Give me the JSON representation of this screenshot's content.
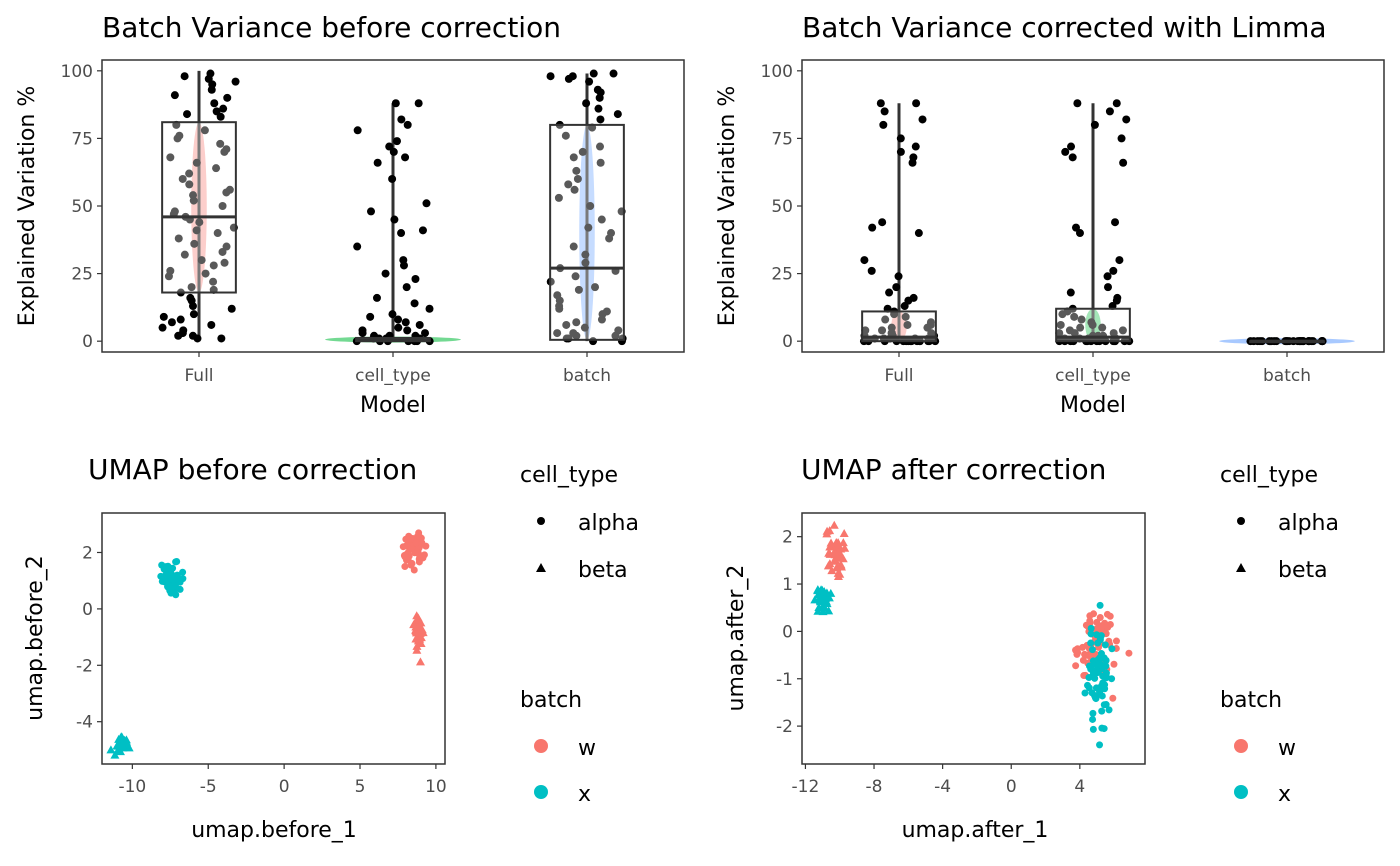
{
  "colors": {
    "w": "#F8766D",
    "x": "#00BFC4",
    "frame": "#333333",
    "point": "#000000",
    "box": "#333333"
  },
  "chart_data": [
    {
      "id": "bv_before",
      "type": "boxplot",
      "title": "Batch Variance before correction",
      "xlabel": "Model",
      "ylabel": "Explained Variation %",
      "categories": [
        "Full",
        "cell_type",
        "batch"
      ],
      "ylim": [
        -4,
        104
      ],
      "yticks": [
        0,
        25,
        50,
        75,
        100
      ],
      "boxes": [
        {
          "q1": 18,
          "median": 46,
          "q3": 81,
          "lo": 1,
          "hi": 100
        },
        {
          "q1": 0,
          "median": 0.3,
          "q3": 1.2,
          "lo": 0,
          "hi": 88
        },
        {
          "q1": 0.5,
          "median": 27,
          "q3": 80,
          "lo": 0,
          "hi": 99
        }
      ],
      "violin_colors": [
        "#F8766D",
        "#00BA38",
        "#619CFF"
      ],
      "points": {
        "Full": [
          99,
          98,
          97,
          96,
          95,
          93,
          91,
          90,
          88,
          86,
          85,
          84,
          83,
          80,
          78,
          76,
          75,
          73,
          71,
          70,
          68,
          66,
          64,
          62,
          60,
          58,
          56,
          55,
          54,
          52,
          50,
          48,
          47,
          46,
          45,
          44,
          42,
          41,
          40,
          38,
          36,
          35,
          33,
          32,
          30,
          29,
          28,
          26,
          25,
          24,
          22,
          20,
          19,
          18,
          16,
          15,
          13,
          12,
          10,
          9,
          8,
          7,
          6,
          5,
          4,
          3,
          2,
          2,
          1,
          1
        ],
        "cell_type": [
          88,
          88,
          82,
          80,
          78,
          74,
          72,
          70,
          68,
          66,
          60,
          51,
          48,
          45,
          41,
          40,
          35,
          30,
          28,
          25,
          23,
          20,
          16,
          14,
          12,
          10,
          9,
          8,
          7,
          6,
          5,
          4,
          4,
          3,
          3,
          2,
          2,
          2,
          1,
          1,
          1,
          1,
          1,
          0,
          0,
          0,
          0,
          0,
          0,
          0
        ],
        "batch": [
          99,
          99,
          98,
          98,
          97,
          96,
          93,
          92,
          90,
          88,
          86,
          84,
          82,
          80,
          79,
          76,
          72,
          70,
          68,
          66,
          63,
          60,
          58,
          56,
          53,
          50,
          48,
          45,
          42,
          40,
          38,
          35,
          32,
          29,
          27,
          26,
          24,
          22,
          20,
          19,
          17,
          15,
          13,
          12,
          11,
          10,
          8,
          7,
          6,
          5,
          4,
          3,
          3,
          2,
          2,
          1,
          1,
          1,
          0,
          0
        ]
      }
    },
    {
      "id": "bv_after",
      "type": "boxplot",
      "title": "Batch Variance corrected with Limma",
      "xlabel": "Model",
      "ylabel": "Explained Variation %",
      "categories": [
        "Full",
        "cell_type",
        "batch"
      ],
      "ylim": [
        -4,
        104
      ],
      "yticks": [
        0,
        25,
        50,
        75,
        100
      ],
      "boxes": [
        {
          "q1": 0,
          "median": 1.5,
          "q3": 11,
          "lo": 0,
          "hi": 88
        },
        {
          "q1": 0,
          "median": 1.5,
          "q3": 12,
          "lo": 0,
          "hi": 88
        },
        {
          "q1": 0,
          "median": 0,
          "q3": 0,
          "lo": 0,
          "hi": 0
        }
      ],
      "violin_colors": [
        "#F8766D",
        "#00BA38",
        "#619CFF"
      ],
      "points": {
        "Full": [
          88,
          88,
          85,
          82,
          80,
          75,
          72,
          70,
          68,
          66,
          44,
          42,
          40,
          30,
          26,
          24,
          20,
          18,
          16,
          15,
          13,
          12,
          11,
          10,
          9,
          8,
          7,
          6,
          6,
          5,
          5,
          4,
          4,
          3,
          3,
          3,
          2,
          2,
          2,
          1,
          1,
          1,
          1,
          1,
          1,
          0,
          0,
          0,
          0,
          0,
          0,
          0,
          0,
          0,
          0,
          0,
          0,
          0,
          0,
          0
        ],
        "cell_type": [
          88,
          88,
          85,
          82,
          80,
          75,
          72,
          70,
          68,
          66,
          44,
          42,
          40,
          30,
          26,
          24,
          20,
          18,
          16,
          15,
          13,
          12,
          11,
          10,
          9,
          8,
          7,
          6,
          6,
          5,
          5,
          4,
          4,
          3,
          3,
          3,
          2,
          2,
          2,
          1,
          1,
          1,
          1,
          1,
          1,
          0,
          0,
          0,
          0,
          0,
          0,
          0,
          0,
          0,
          0,
          0,
          0,
          0,
          0,
          0
        ],
        "batch": [
          0,
          0,
          0,
          0,
          0,
          0,
          0,
          0,
          0,
          0,
          0,
          0,
          0,
          0,
          0,
          0,
          0,
          0,
          0,
          0,
          0,
          0,
          0,
          0,
          0,
          0,
          0,
          0,
          0,
          0
        ]
      }
    },
    {
      "id": "umap_before",
      "type": "scatter",
      "title": "UMAP before correction",
      "xlabel": "umap.before_1",
      "ylabel": "umap.before_2",
      "xlim": [
        -12,
        10.6
      ],
      "ylim": [
        -5.5,
        3.4
      ],
      "xticks": [
        -10,
        -5,
        0,
        5,
        10
      ],
      "yticks": [
        2,
        0,
        -2,
        -4
      ],
      "clusters": [
        {
          "batch": "w",
          "cell_type": "alpha",
          "cx": 8.5,
          "cy": 2.1,
          "sx": 0.55,
          "sy": 0.45,
          "n": 60
        },
        {
          "batch": "w",
          "cell_type": "beta",
          "cx": 8.9,
          "cy": -0.8,
          "sx": 0.25,
          "sy": 0.45,
          "n": 40
        },
        {
          "batch": "x",
          "cell_type": "alpha",
          "cx": -7.4,
          "cy": 1.0,
          "sx": 0.45,
          "sy": 0.35,
          "n": 60
        },
        {
          "batch": "x",
          "cell_type": "beta",
          "cx": -10.7,
          "cy": -4.8,
          "sx": 0.3,
          "sy": 0.2,
          "n": 40
        }
      ]
    },
    {
      "id": "umap_after",
      "type": "scatter",
      "title": "UMAP after correction",
      "xlabel": "umap.after_1",
      "ylabel": "umap.after_2",
      "xlim": [
        -12.2,
        7.8
      ],
      "ylim": [
        -2.8,
        2.5
      ],
      "xticks": [
        -12,
        -8,
        -4,
        0,
        4
      ],
      "yticks": [
        2,
        1,
        0,
        -1,
        -2
      ],
      "clusters": [
        {
          "batch": "w",
          "cell_type": "beta",
          "cx": -10.2,
          "cy": 1.6,
          "sx": 0.3,
          "sy": 0.4,
          "n": 40
        },
        {
          "batch": "x",
          "cell_type": "beta",
          "cx": -11.0,
          "cy": 0.7,
          "sx": 0.35,
          "sy": 0.2,
          "n": 40
        },
        {
          "batch": "w",
          "cell_type": "alpha",
          "cx": 4.8,
          "cy": -0.3,
          "sx": 0.9,
          "sy": 0.6,
          "n": 70
        },
        {
          "batch": "x",
          "cell_type": "alpha",
          "cx": 5.1,
          "cy": -0.8,
          "sx": 0.45,
          "sy": 0.8,
          "n": 70
        }
      ]
    }
  ],
  "legends": [
    {
      "cell_type_title": "cell_type",
      "cell_types": [
        "alpha",
        "beta"
      ],
      "batch_title": "batch",
      "batches": [
        "w",
        "x"
      ]
    },
    {
      "cell_type_title": "cell_type",
      "cell_types": [
        "alpha",
        "beta"
      ],
      "batch_title": "batch",
      "batches": [
        "w",
        "x"
      ]
    }
  ]
}
